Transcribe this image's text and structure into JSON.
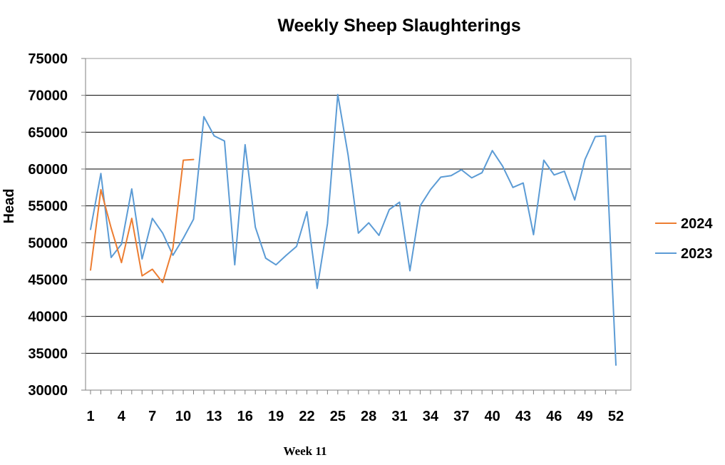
{
  "chart_data": {
    "type": "line",
    "title": "Weekly Sheep Slaughterings",
    "xlabel": "",
    "ylabel": "Head",
    "ylim": [
      30000,
      75000
    ],
    "xlim": [
      1,
      52
    ],
    "y_ticks": [
      30000,
      35000,
      40000,
      45000,
      50000,
      55000,
      60000,
      65000,
      70000,
      75000
    ],
    "x_ticks": [
      1,
      4,
      7,
      10,
      13,
      16,
      19,
      22,
      25,
      28,
      31,
      34,
      37,
      40,
      43,
      46,
      49,
      52
    ],
    "grid": "horizontal",
    "legend_position": "right",
    "series": [
      {
        "name": "2024",
        "color": "#ED7D31",
        "x": [
          1,
          2,
          3,
          4,
          5,
          6,
          7,
          8,
          9,
          10,
          11
        ],
        "values": [
          46300,
          57200,
          52000,
          47300,
          53300,
          45500,
          46400,
          44600,
          49300,
          61200,
          61300
        ]
      },
      {
        "name": "2023",
        "color": "#5B9BD5",
        "x": [
          1,
          2,
          3,
          4,
          5,
          6,
          7,
          8,
          9,
          10,
          11,
          12,
          13,
          14,
          15,
          16,
          17,
          18,
          19,
          20,
          21,
          22,
          23,
          24,
          25,
          26,
          27,
          28,
          29,
          30,
          31,
          32,
          33,
          34,
          35,
          36,
          37,
          38,
          39,
          40,
          41,
          42,
          43,
          44,
          45,
          46,
          47,
          48,
          49,
          50,
          51,
          52
        ],
        "values": [
          51800,
          59400,
          48000,
          49800,
          57300,
          47800,
          53300,
          51300,
          48300,
          50600,
          53200,
          67100,
          64500,
          63800,
          47000,
          63300,
          52100,
          47900,
          47000,
          48300,
          49500,
          54200,
          43800,
          52600,
          70100,
          61900,
          51300,
          52700,
          51000,
          54500,
          55500,
          46200,
          55000,
          57200,
          58900,
          59100,
          59900,
          58800,
          59500,
          62500,
          60400,
          57500,
          58100,
          51100,
          61200,
          59200,
          59700,
          55800,
          61300,
          64400,
          64500,
          33400
        ]
      }
    ],
    "annotation": "Week 11"
  }
}
